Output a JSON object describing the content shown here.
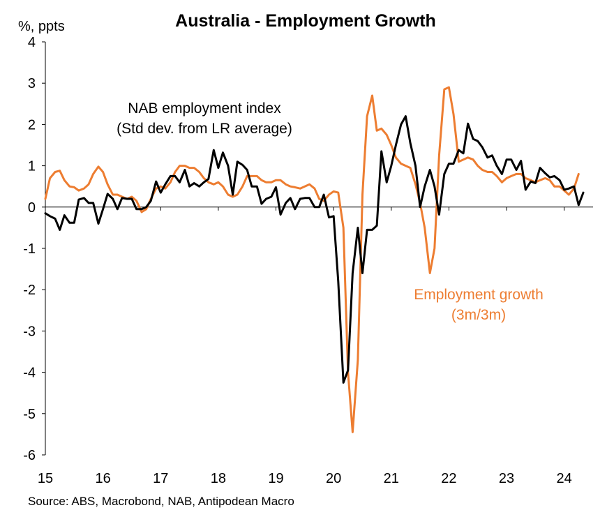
{
  "chart_data": {
    "type": "line",
    "title": "Australia - Employment Growth",
    "ylabel": "%, ppts",
    "xlabel": "",
    "ylim": [
      -6,
      4
    ],
    "yticks": [
      4,
      3,
      2,
      1,
      0,
      -1,
      -2,
      -3,
      -4,
      -5,
      -6
    ],
    "ytick_labels": [
      "4",
      "3",
      "2",
      "1",
      "0",
      "-1",
      "-2",
      "-3",
      "-4",
      "-5",
      "-6"
    ],
    "xlim": [
      2015,
      2024.5
    ],
    "xticks": [
      2015,
      2016,
      2017,
      2018,
      2019,
      2020,
      2021,
      2022,
      2023,
      2024
    ],
    "xtick_labels": [
      "15",
      "16",
      "17",
      "18",
      "19",
      "20",
      "21",
      "22",
      "23",
      "24"
    ],
    "grid": false,
    "legend": "none",
    "annotations": [
      {
        "lines": [
          "NAB employment index",
          "(Std dev. from LR average)"
        ],
        "series": "nab"
      },
      {
        "lines": [
          "Employment growth",
          "(3m/3m)"
        ],
        "series": "employment"
      }
    ],
    "source": "Source: ABS, Macrobond, NAB, Antipodean Macro",
    "series": [
      {
        "id": "employment",
        "color": "#ED7D31",
        "x": [
          2015.0,
          2015.08,
          2015.17,
          2015.25,
          2015.33,
          2015.42,
          2015.5,
          2015.58,
          2015.67,
          2015.75,
          2015.83,
          2015.92,
          2016.0,
          2016.08,
          2016.17,
          2016.25,
          2016.33,
          2016.42,
          2016.5,
          2016.58,
          2016.67,
          2016.75,
          2016.83,
          2016.92,
          2017.0,
          2017.08,
          2017.17,
          2017.25,
          2017.33,
          2017.42,
          2017.5,
          2017.58,
          2017.67,
          2017.75,
          2017.83,
          2017.92,
          2018.0,
          2018.08,
          2018.17,
          2018.25,
          2018.33,
          2018.42,
          2018.5,
          2018.58,
          2018.67,
          2018.75,
          2018.83,
          2018.92,
          2019.0,
          2019.08,
          2019.17,
          2019.25,
          2019.33,
          2019.42,
          2019.5,
          2019.58,
          2019.67,
          2019.75,
          2019.83,
          2019.92,
          2020.0,
          2020.08,
          2020.17,
          2020.25,
          2020.33,
          2020.42,
          2020.5,
          2020.58,
          2020.67,
          2020.75,
          2020.83,
          2020.92,
          2021.0,
          2021.08,
          2021.17,
          2021.25,
          2021.33,
          2021.42,
          2021.5,
          2021.58,
          2021.67,
          2021.75,
          2021.83,
          2021.92,
          2022.0,
          2022.08,
          2022.17,
          2022.25,
          2022.33,
          2022.42,
          2022.5,
          2022.58,
          2022.67,
          2022.75,
          2022.83,
          2022.92,
          2023.0,
          2023.08,
          2023.17,
          2023.25,
          2023.33,
          2023.42,
          2023.5,
          2023.58,
          2023.67,
          2023.75,
          2023.83,
          2023.92,
          2024.0,
          2024.08,
          2024.17,
          2024.25
        ],
        "values": [
          0.2,
          0.7,
          0.85,
          0.88,
          0.65,
          0.5,
          0.48,
          0.4,
          0.45,
          0.55,
          0.8,
          0.98,
          0.85,
          0.55,
          0.3,
          0.3,
          0.25,
          0.2,
          0.25,
          0.15,
          -0.12,
          -0.05,
          0.2,
          0.45,
          0.5,
          0.45,
          0.6,
          0.85,
          1.0,
          1.0,
          0.95,
          0.95,
          0.85,
          0.7,
          0.6,
          0.55,
          0.6,
          0.5,
          0.3,
          0.25,
          0.3,
          0.5,
          0.75,
          0.75,
          0.75,
          0.65,
          0.6,
          0.6,
          0.65,
          0.65,
          0.55,
          0.5,
          0.48,
          0.45,
          0.5,
          0.55,
          0.45,
          0.2,
          0.15,
          0.3,
          0.38,
          0.35,
          -0.5,
          -4.0,
          -5.45,
          -3.7,
          0.3,
          2.2,
          2.7,
          1.85,
          1.9,
          1.75,
          1.5,
          1.2,
          1.05,
          1.0,
          0.95,
          0.55,
          0.1,
          -0.5,
          -1.6,
          -1.0,
          1.25,
          2.85,
          2.9,
          2.25,
          1.1,
          1.15,
          1.2,
          1.15,
          1.0,
          0.9,
          0.85,
          0.85,
          0.75,
          0.6,
          0.7,
          0.75,
          0.8,
          0.8,
          0.7,
          0.65,
          0.6,
          0.65,
          0.7,
          0.65,
          0.5,
          0.5,
          0.4,
          0.3,
          0.45,
          0.8
        ]
      },
      {
        "id": "nab",
        "color": "#000000",
        "x": [
          2015.0,
          2015.08,
          2015.17,
          2015.25,
          2015.33,
          2015.42,
          2015.5,
          2015.58,
          2015.67,
          2015.75,
          2015.83,
          2015.92,
          2016.0,
          2016.08,
          2016.17,
          2016.25,
          2016.33,
          2016.42,
          2016.5,
          2016.58,
          2016.67,
          2016.75,
          2016.83,
          2016.92,
          2017.0,
          2017.08,
          2017.17,
          2017.25,
          2017.33,
          2017.42,
          2017.5,
          2017.58,
          2017.67,
          2017.75,
          2017.83,
          2017.92,
          2018.0,
          2018.08,
          2018.17,
          2018.25,
          2018.33,
          2018.42,
          2018.5,
          2018.58,
          2018.67,
          2018.75,
          2018.83,
          2018.92,
          2019.0,
          2019.08,
          2019.17,
          2019.25,
          2019.33,
          2019.42,
          2019.5,
          2019.58,
          2019.67,
          2019.75,
          2019.83,
          2019.92,
          2020.0,
          2020.08,
          2020.17,
          2020.25,
          2020.33,
          2020.42,
          2020.5,
          2020.58,
          2020.67,
          2020.75,
          2020.83,
          2020.92,
          2021.0,
          2021.08,
          2021.17,
          2021.25,
          2021.33,
          2021.42,
          2021.5,
          2021.58,
          2021.67,
          2021.75,
          2021.83,
          2021.92,
          2022.0,
          2022.08,
          2022.17,
          2022.25,
          2022.33,
          2022.42,
          2022.5,
          2022.58,
          2022.67,
          2022.75,
          2022.83,
          2022.92,
          2023.0,
          2023.08,
          2023.17,
          2023.25,
          2023.33,
          2023.42,
          2023.5,
          2023.58,
          2023.67,
          2023.75,
          2023.83,
          2023.92,
          2024.0,
          2024.08,
          2024.17,
          2024.25,
          2024.33
        ],
        "values": [
          -0.15,
          -0.22,
          -0.28,
          -0.55,
          -0.2,
          -0.38,
          -0.38,
          0.18,
          0.22,
          0.1,
          0.1,
          -0.4,
          -0.05,
          0.32,
          0.2,
          -0.05,
          0.22,
          0.2,
          0.2,
          -0.05,
          -0.05,
          0.0,
          0.15,
          0.62,
          0.35,
          0.55,
          0.75,
          0.75,
          0.6,
          0.9,
          0.5,
          0.58,
          0.5,
          0.6,
          0.68,
          1.38,
          0.95,
          1.32,
          1.0,
          0.3,
          1.1,
          1.02,
          0.9,
          0.5,
          0.5,
          0.08,
          0.2,
          0.25,
          0.48,
          -0.18,
          0.1,
          0.22,
          -0.05,
          0.2,
          0.22,
          0.22,
          0.0,
          0.0,
          0.3,
          -0.25,
          -0.22,
          -1.8,
          -4.25,
          -3.95,
          -1.6,
          -0.5,
          -1.6,
          -0.55,
          -0.55,
          -0.45,
          1.35,
          0.6,
          1.0,
          1.5,
          2.0,
          2.2,
          1.55,
          1.0,
          0.0,
          0.5,
          0.9,
          0.5,
          -0.18,
          0.8,
          1.05,
          1.05,
          1.38,
          1.3,
          2.02,
          1.65,
          1.6,
          1.45,
          1.2,
          1.25,
          1.0,
          0.8,
          1.15,
          1.15,
          0.9,
          1.12,
          0.42,
          0.62,
          0.58,
          0.95,
          0.82,
          0.72,
          0.75,
          0.65,
          0.42,
          0.45,
          0.5,
          0.05,
          0.35
        ]
      }
    ]
  }
}
